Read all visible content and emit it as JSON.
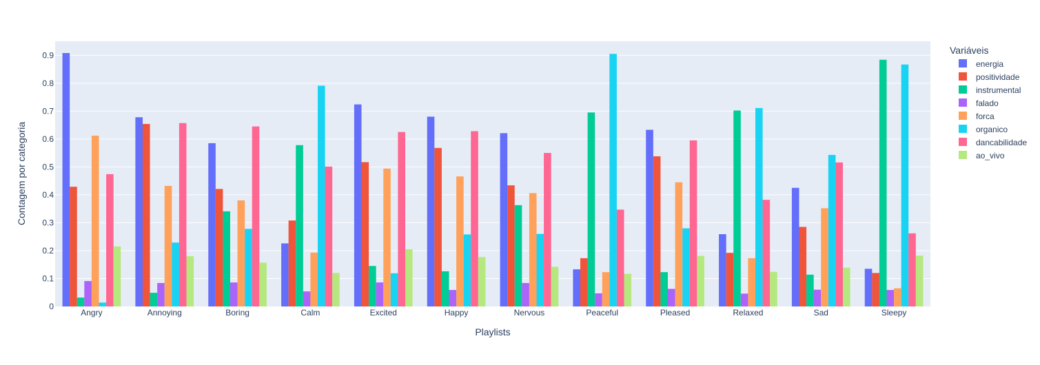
{
  "colors": {
    "plot_background": "#e5ecf6",
    "grid": "#ffffff",
    "text": "#2a3f5f"
  },
  "chart_data": {
    "type": "bar",
    "title": "",
    "xlabel": "Playlists",
    "ylabel": "Contagem por categoria",
    "ylim": [
      0,
      0.95
    ],
    "yticks": [
      0,
      0.1,
      0.2,
      0.3,
      0.4,
      0.5,
      0.6,
      0.7,
      0.8,
      0.9
    ],
    "ytick_labels": [
      "0",
      "0.1",
      "0.2",
      "0.3",
      "0.4",
      "0.5",
      "0.6",
      "0.7",
      "0.8",
      "0.9"
    ],
    "grid": true,
    "legend_position": "right",
    "legend_title": "Variáveis",
    "categories": [
      "Angry",
      "Annoying",
      "Boring",
      "Calm",
      "Excited",
      "Happy",
      "Nervous",
      "Peaceful",
      "Pleased",
      "Relaxed",
      "Sad",
      "Sleepy"
    ],
    "series": [
      {
        "name": "energia",
        "color": "#636efa",
        "values": [
          0.908,
          0.678,
          0.585,
          0.226,
          0.724,
          0.68,
          0.621,
          0.133,
          0.633,
          0.259,
          0.425,
          0.135
        ]
      },
      {
        "name": "positividade",
        "color": "#ef553b",
        "values": [
          0.429,
          0.654,
          0.421,
          0.308,
          0.517,
          0.568,
          0.434,
          0.173,
          0.538,
          0.192,
          0.285,
          0.12
        ]
      },
      {
        "name": "instrumental",
        "color": "#00cc96",
        "values": [
          0.032,
          0.049,
          0.341,
          0.578,
          0.145,
          0.126,
          0.363,
          0.695,
          0.123,
          0.702,
          0.114,
          0.884
        ]
      },
      {
        "name": "falado",
        "color": "#ab63fa",
        "values": [
          0.091,
          0.084,
          0.086,
          0.054,
          0.086,
          0.059,
          0.084,
          0.047,
          0.063,
          0.046,
          0.06,
          0.059
        ]
      },
      {
        "name": "forca",
        "color": "#ffa15a",
        "values": [
          0.612,
          0.432,
          0.38,
          0.193,
          0.494,
          0.466,
          0.406,
          0.123,
          0.445,
          0.173,
          0.352,
          0.065
        ]
      },
      {
        "name": "organico",
        "color": "#19d3f3",
        "values": [
          0.014,
          0.229,
          0.278,
          0.791,
          0.119,
          0.258,
          0.26,
          0.905,
          0.28,
          0.711,
          0.543,
          0.867
        ]
      },
      {
        "name": "dancabilidade",
        "color": "#ff6692",
        "values": [
          0.474,
          0.657,
          0.645,
          0.501,
          0.625,
          0.628,
          0.55,
          0.347,
          0.595,
          0.382,
          0.516,
          0.262
        ]
      },
      {
        "name": "ao_vivo",
        "color": "#b6e880",
        "values": [
          0.215,
          0.18,
          0.157,
          0.12,
          0.205,
          0.177,
          0.142,
          0.117,
          0.181,
          0.124,
          0.139,
          0.182
        ]
      }
    ]
  }
}
